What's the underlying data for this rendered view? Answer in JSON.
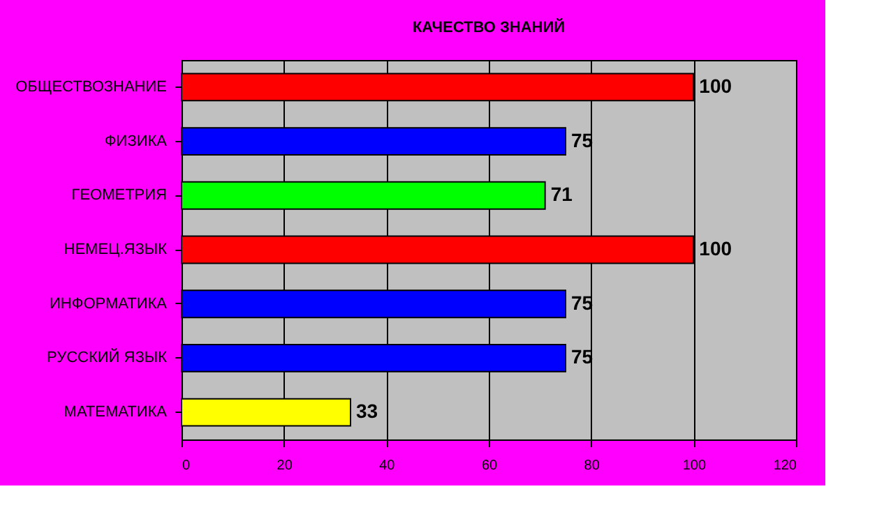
{
  "chart_data": {
    "type": "bar",
    "orientation": "horizontal",
    "title": "КАЧЕСТВО ЗНАНИЙ",
    "categories": [
      "ОБЩЕСТВОЗНАНИЕ",
      "ФИЗИКА",
      "ГЕОМЕТРИЯ",
      "НЕМЕЦ.ЯЗЫК",
      "ИНФОРМАТИКА",
      "РУССКИЙ ЯЗЫК",
      "МАТЕМАТИКА"
    ],
    "values": [
      100,
      75,
      71,
      100,
      75,
      75,
      33
    ],
    "colors": [
      "#ff0000",
      "#0000ff",
      "#00ff00",
      "#ff0000",
      "#0000ff",
      "#0000ff",
      "#ffff00"
    ],
    "xlim": [
      0,
      120
    ],
    "xticks": [
      0,
      20,
      40,
      60,
      80,
      100,
      120
    ],
    "grid": "x",
    "data_labels": true,
    "legend": false
  }
}
